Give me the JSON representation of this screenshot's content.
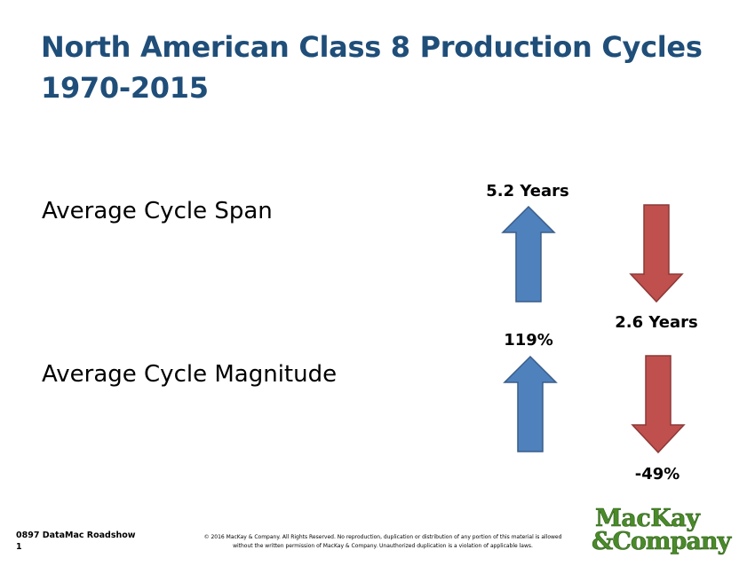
{
  "slide": {
    "title_line1": "North American Class 8 Production Cycles",
    "title_line2": "1970-2015"
  },
  "rows": {
    "span": {
      "label": "Average Cycle Span",
      "up_value": "5.2 Years",
      "down_value": "2.6 Years"
    },
    "magnitude": {
      "label": "Average Cycle Magnitude",
      "up_value": "119%",
      "down_value": "-49%"
    }
  },
  "footer": {
    "deck_id": "0897 DataMac Roadshow",
    "page_number": "1",
    "copyright_line1": "© 2016 MacKay & Company.   All Rights Reserved.   No reproduction,   duplication or distribution   of any portion of this material is allowed",
    "copyright_line2": "without the written permission of MacKay & Company.   Unauthorized duplication is a violation of applicable laws."
  },
  "logo": {
    "line1": "MacKay",
    "line2": "&Company",
    "color": "#4a8a2a"
  },
  "colors": {
    "title": "#1f4e79",
    "up_arrow": "#4f81bd",
    "up_arrow_outline": "#385d8a",
    "down_arrow": "#c0504d",
    "down_arrow_outline": "#8c3836"
  },
  "icons": {
    "up": "arrow-up-icon",
    "down": "arrow-down-icon"
  }
}
